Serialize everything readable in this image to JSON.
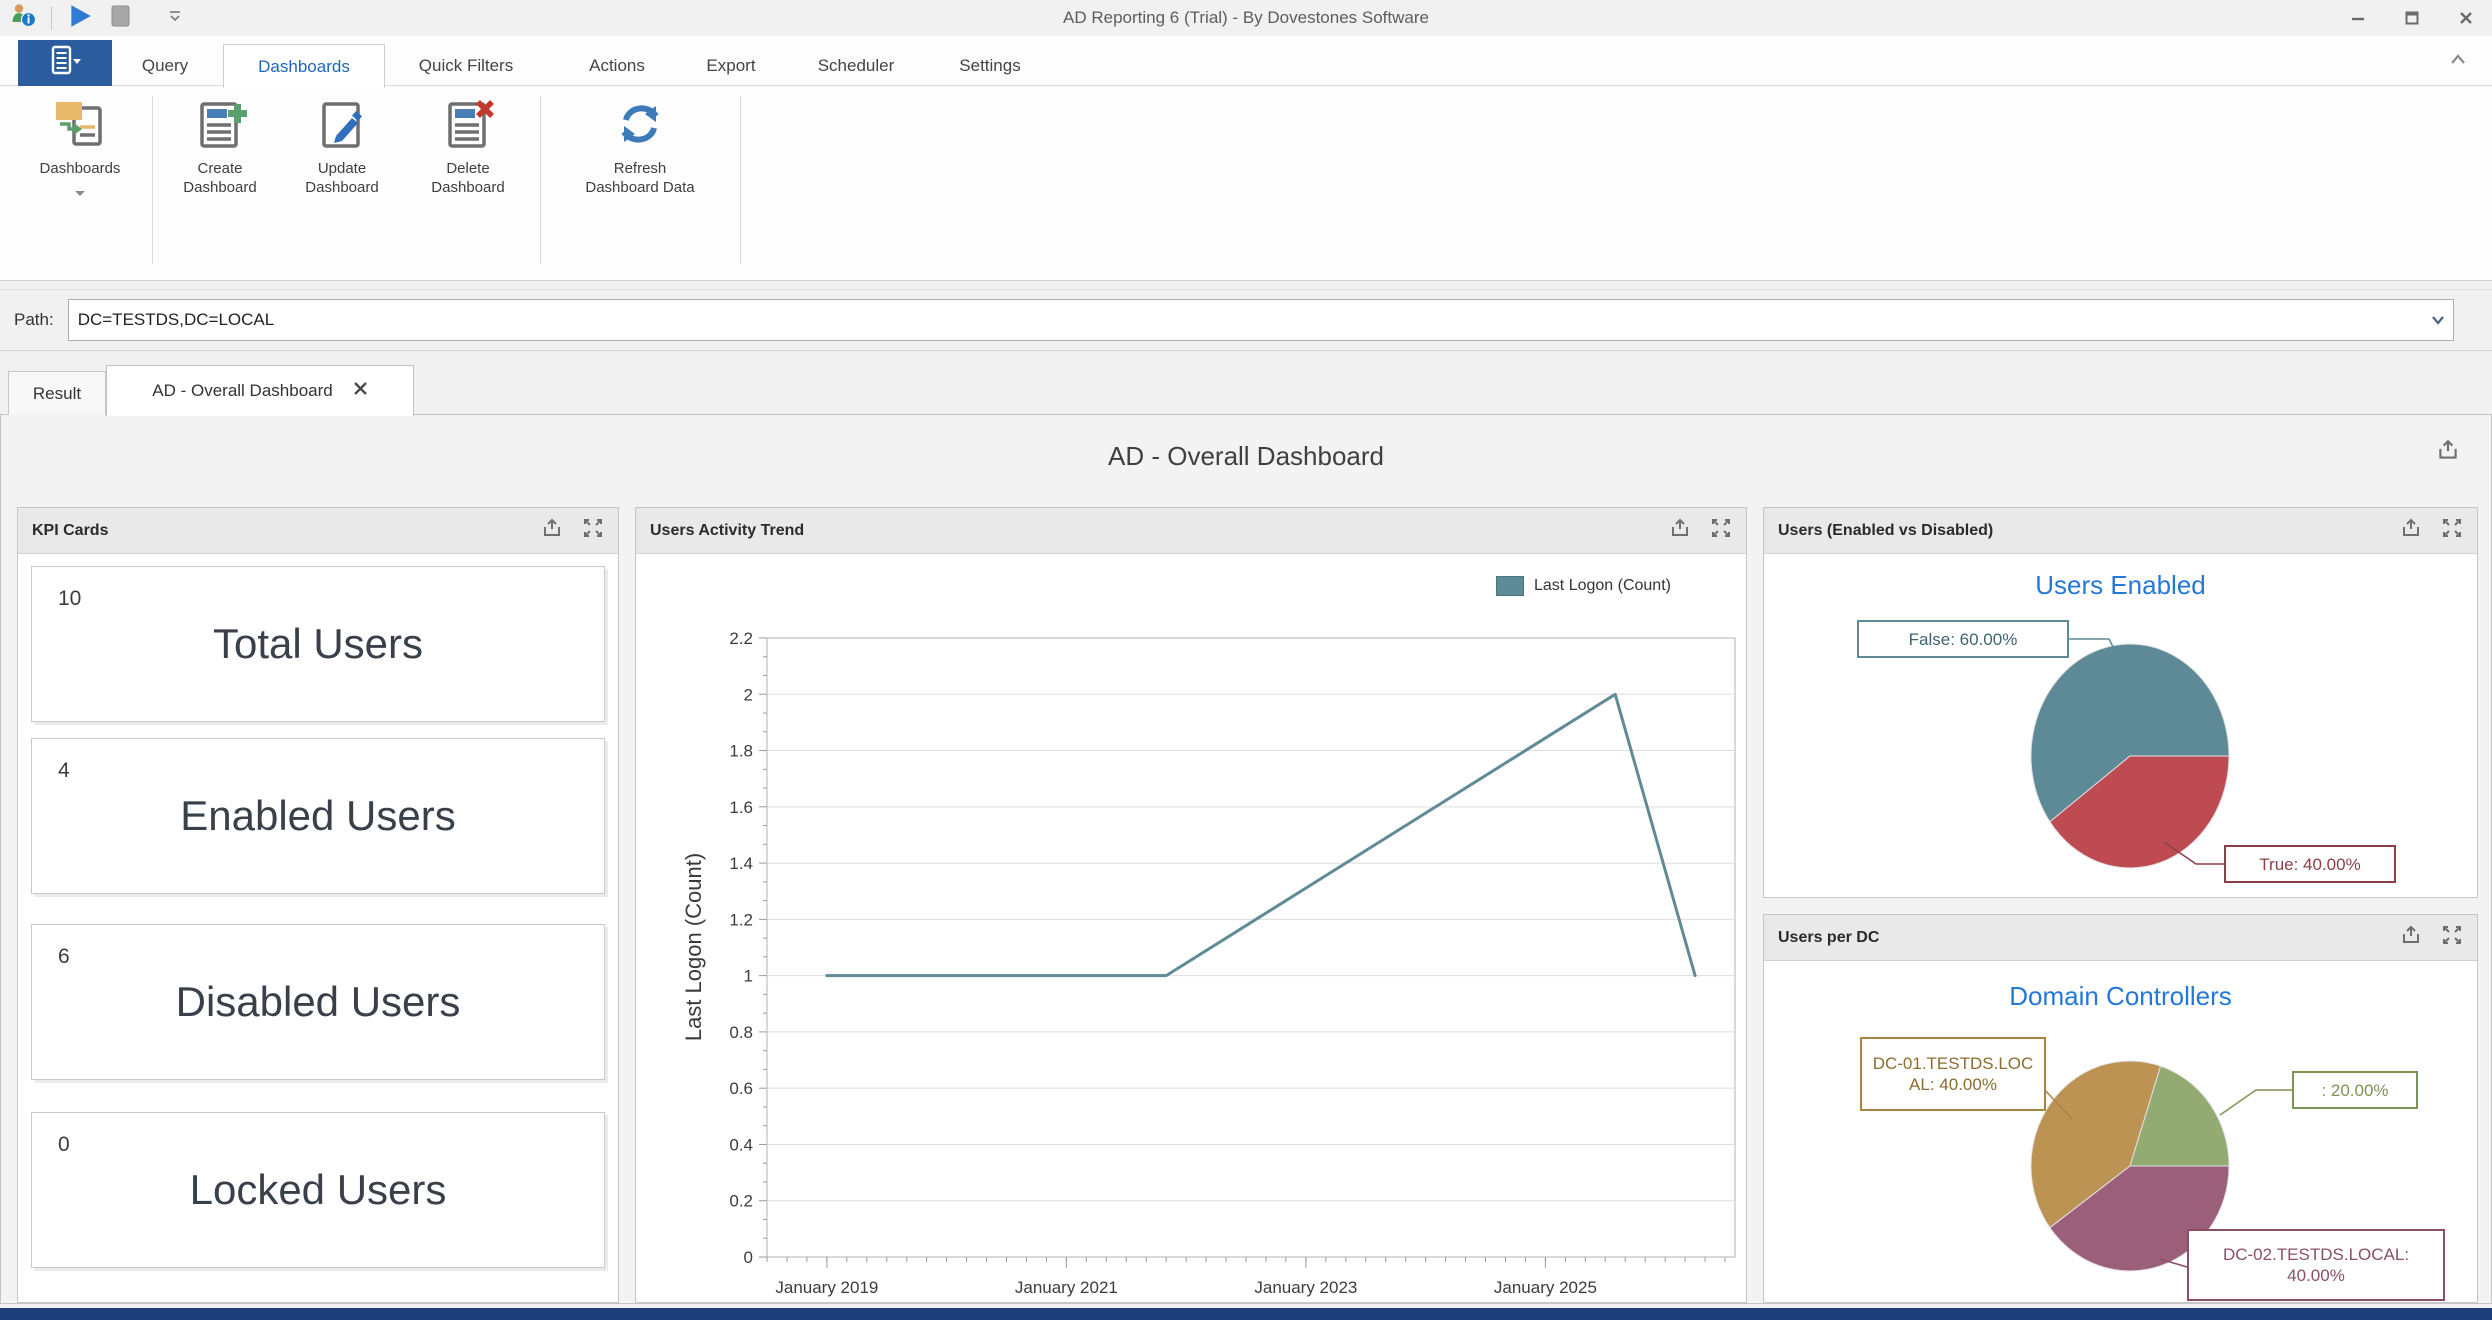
{
  "window": {
    "title": "AD Reporting 6 (Trial) - By Dovestones Software",
    "quick_access_icons": [
      "user-report-icon",
      "run-icon",
      "stop-icon",
      "customize-qat-icon"
    ],
    "control_icons": [
      "minimize-icon",
      "maximize-icon",
      "close-icon"
    ]
  },
  "ribbon": {
    "app_button_icon": "list-menu-icon",
    "tabs": [
      "Query",
      "Dashboards",
      "Quick Filters",
      "Actions",
      "Export",
      "Scheduler",
      "Settings"
    ],
    "active_tab": "Dashboards",
    "buttons": {
      "dashboards": "Dashboards",
      "create": "Create Dashboard",
      "update": "Update Dashboard",
      "delete": "Delete Dashboard",
      "refresh": "Refresh Dashboard Data"
    },
    "collapse_icon": "chevron-up-icon"
  },
  "path_bar": {
    "label": "Path:",
    "value": "DC=TESTDS,DC=LOCAL"
  },
  "doc_tabs": {
    "result": "Result",
    "dashboard": "AD - Overall Dashboard"
  },
  "dashboard": {
    "title": "AD - Overall Dashboard",
    "kpi": {
      "header": "KPI Cards",
      "cards": [
        {
          "value": "10",
          "label": "Total Users"
        },
        {
          "value": "4",
          "label": "Enabled Users"
        },
        {
          "value": "6",
          "label": "Disabled Users"
        },
        {
          "value": "0",
          "label": "Locked Users"
        }
      ]
    },
    "trend": {
      "header": "Users Activity Trend",
      "legend": "Last Logon (Count)",
      "ylabel": "Last Logon (Count)"
    },
    "pie_enabled": {
      "header": "Users (Enabled vs Disabled)",
      "title": "Users Enabled",
      "callout_false": "False: 60.00%",
      "callout_true": "True: 40.00%"
    },
    "pie_dc": {
      "header": "Users per DC",
      "title": "Domain Controllers",
      "callout_dc01": "DC-01.TESTDS.LOCAL: 40.00%",
      "callout_unknown": ": 20.00%",
      "callout_dc02": "DC-02.TESTDS.LOCAL: 40.00%"
    }
  },
  "colors": {
    "accent_blue": "#2b5c9e",
    "active_tab_text": "#1e68bb",
    "chart_title_blue": "#2478d8",
    "line_teal": "#5f8b96",
    "pie_teal": "#5d8a96",
    "pie_red": "#bf4b52",
    "pie_gold": "#bd9354",
    "pie_green": "#93ab72",
    "pie_purple": "#9c5f79",
    "bottom_bar": "#1e3d7b"
  },
  "chart_data": [
    {
      "type": "line",
      "title": "Users Activity Trend",
      "xlabel": "",
      "ylabel": "Last Logon (Count)",
      "grid": "horizontal",
      "legend": {
        "position": "top-right",
        "entries": [
          "Last Logon (Count)"
        ]
      },
      "x_axis": {
        "min": 0,
        "max": 97,
        "unit": "months-since-2018-07",
        "minor_tick_step": 2,
        "major_ticks": [
          {
            "x": 6,
            "label": "January 2019"
          },
          {
            "x": 30,
            "label": "January 2021"
          },
          {
            "x": 54,
            "label": "January 2023"
          },
          {
            "x": 78,
            "label": "January 2025"
          }
        ]
      },
      "y_axis": {
        "min": 0,
        "max": 2.2,
        "tick_step": 0.2,
        "tick_labels": [
          "0",
          "0.2",
          "0.4",
          "0.6",
          "0.8",
          "1",
          "1.2",
          "1.4",
          "1.6",
          "1.8",
          "2",
          "2.2"
        ]
      },
      "series": [
        {
          "name": "Last Logon (Count)",
          "color": "#5f8b96",
          "points": [
            {
              "x": 6,
              "date": "2019-01",
              "y": 1
            },
            {
              "x": 40,
              "date": "2021-11",
              "y": 1
            },
            {
              "x": 85,
              "date": "2025-08",
              "y": 2
            },
            {
              "x": 93,
              "date": "2026-04",
              "y": 1
            }
          ]
        }
      ]
    },
    {
      "type": "pie",
      "panel": "Users (Enabled vs Disabled)",
      "title": "Users Enabled",
      "start_angle_deg": 90,
      "slices": [
        {
          "label": "True",
          "percent": 40,
          "color": "#bf4b52",
          "callout": "True: 40.00%"
        },
        {
          "label": "False",
          "percent": 60,
          "color": "#5d8a96",
          "callout": "False: 60.00%"
        }
      ]
    },
    {
      "type": "pie",
      "panel": "Users per DC",
      "title": "Domain Controllers",
      "start_angle_deg": 18,
      "slices": [
        {
          "label": "",
          "percent": 20,
          "color": "#93ab72",
          "callout": ": 20.00%"
        },
        {
          "label": "DC-02.TESTDS.LOCAL",
          "percent": 40,
          "color": "#9c5f79",
          "callout": "DC-02.TESTDS.LOCAL: 40.00%"
        },
        {
          "label": "DC-01.TESTDS.LOCAL",
          "percent": 40,
          "color": "#bd9354",
          "callout": "DC-01.TESTDS.LOCAL: 40.00%"
        }
      ]
    }
  ]
}
